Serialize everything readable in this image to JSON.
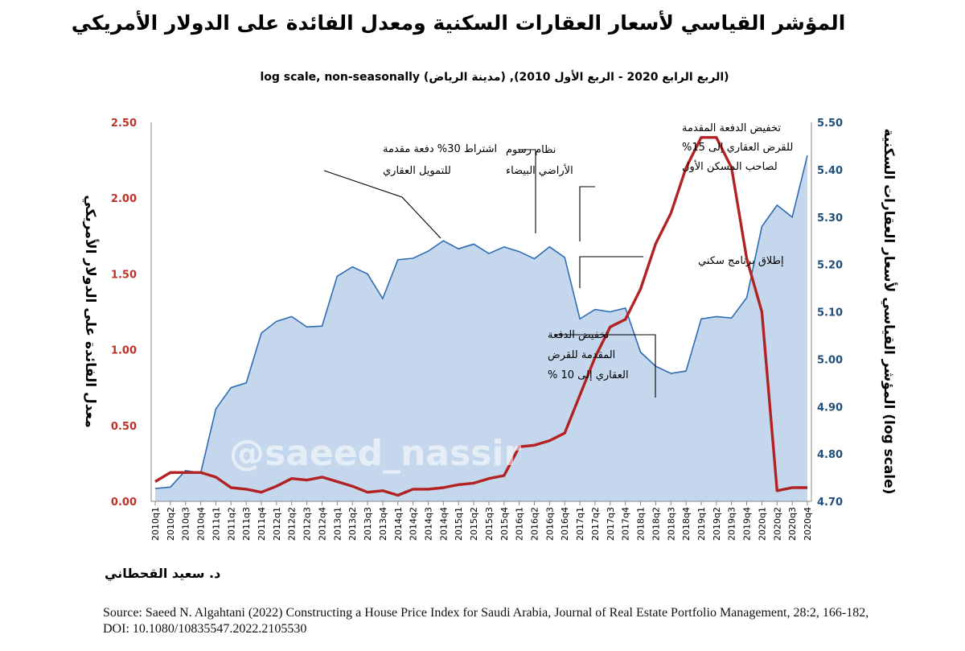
{
  "title": "المؤشر القياسي لأسعار العقارات السكنية ومعدل الفائدة على الدولار الأمريكي",
  "subtitle": "log scale, non-seasonally (مدينة الرياض) ,(الربع الرابع 2020 - الربع الأول 2010)",
  "author": "د. سعيد القحطاني",
  "watermark": "@saeed_nassir",
  "source": "Source: Saeed N. Algahtani (2022) Constructing a House Price Index for Saudi Arabia, Journal of Real Estate Portfolio Management, 28:2, 166-182, DOI: 10.1080/10835547.2022.2105530",
  "colors": {
    "rate": "#b22222",
    "index_fill": "#c5d7ec",
    "index_line": "#2e6db4",
    "left_axis": "#c0302a",
    "right_axis": "#1f4e79"
  },
  "chart_data": {
    "type": "area+line",
    "categories": [
      "2010q1",
      "2010q2",
      "2010q3",
      "2010q4",
      "2011q1",
      "2011q2",
      "2011q3",
      "2011q4",
      "2012q1",
      "2012q2",
      "2012q3",
      "2012q4",
      "2013q1",
      "2013q2",
      "2013q3",
      "2013q4",
      "2014q1",
      "2014q2",
      "2014q3",
      "2014q4",
      "2015q1",
      "2015q2",
      "2015q3",
      "2015q4",
      "2016q1",
      "2016q2",
      "2016q3",
      "2016q4",
      "2017q1",
      "2017q2",
      "2017q3",
      "2017q4",
      "2018q1",
      "2018q2",
      "2018q3",
      "2018q4",
      "2019q1",
      "2019q2",
      "2019q3",
      "2019q4",
      "2020q1",
      "2020q2",
      "2020q3",
      "2020q4"
    ],
    "series": [
      {
        "name": "المؤشر القياسي لأسعار العقارات السكنية (log scale)",
        "kind": "area",
        "axis": "right",
        "values": [
          4.727,
          4.73,
          4.765,
          4.76,
          4.895,
          4.94,
          4.95,
          5.055,
          5.08,
          5.09,
          5.068,
          5.07,
          5.175,
          5.195,
          5.18,
          5.128,
          5.21,
          5.213,
          5.228,
          5.25,
          5.233,
          5.243,
          5.223,
          5.237,
          5.227,
          5.212,
          5.237,
          5.215,
          5.085,
          5.105,
          5.1,
          5.108,
          5.015,
          4.985,
          4.97,
          4.975,
          5.085,
          5.09,
          5.087,
          5.13,
          5.28,
          5.325,
          5.3,
          5.43
        ]
      },
      {
        "name": "معدل الفائدة على الدولار الأمريكي",
        "kind": "line",
        "axis": "left",
        "values": [
          0.13,
          0.19,
          0.19,
          0.19,
          0.16,
          0.09,
          0.08,
          0.06,
          0.1,
          0.15,
          0.14,
          0.16,
          0.13,
          0.1,
          0.06,
          0.07,
          0.04,
          0.08,
          0.08,
          0.09,
          0.11,
          0.12,
          0.15,
          0.17,
          0.36,
          0.37,
          0.4,
          0.45,
          0.7,
          0.95,
          1.15,
          1.2,
          1.4,
          1.7,
          1.9,
          2.2,
          2.4,
          2.4,
          2.2,
          1.6,
          1.25,
          0.07,
          0.09,
          0.09
        ]
      }
    ],
    "left_axis": {
      "label": "معدل الفائدة على الدولار الأمريكي",
      "ylim": [
        0,
        2.5
      ],
      "ticks": [
        "0.00",
        "0.50",
        "1.00",
        "1.50",
        "2.00",
        "2.50"
      ]
    },
    "right_axis": {
      "label": "المؤشر القياسي لأسعار العقارات السكنية (log scale)",
      "ylim": [
        4.7,
        5.5
      ],
      "ticks": [
        "4.70",
        "4.80",
        "4.90",
        "5.00",
        "5.10",
        "5.20",
        "5.30",
        "5.40",
        "5.50"
      ]
    },
    "annotations": [
      {
        "id": "down30",
        "lines": [
          "اشتراط 30% دفعة مقدمة",
          "للتمويل العقاري"
        ]
      },
      {
        "id": "whiteland",
        "lines": [
          "نظام رسوم",
          "الأراضي البيضاء"
        ]
      },
      {
        "id": "down15",
        "lines": [
          "تخفيض الدفعة المقدمة",
          "للقرض العقاري إلى 15%",
          "لصاحب المسكن الأول"
        ]
      },
      {
        "id": "sakani",
        "lines": [
          "إطلاق برنامج سكني"
        ]
      },
      {
        "id": "down10",
        "lines": [
          "تخفيض الدفعة",
          "المقدمة للقرض",
          "العقاري إلى 10 %"
        ]
      }
    ]
  }
}
